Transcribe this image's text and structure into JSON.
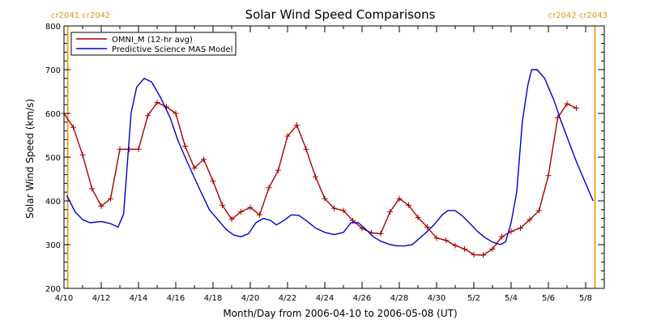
{
  "chart_data": {
    "type": "line",
    "title": "Solar Wind Speed Comparisons",
    "xlabel": "Month/Day from 2006-04-10 to 2006-05-08 (UT)",
    "ylabel": "Solar Wind Speed (km/s)",
    "x_start_date": "2006-04-10",
    "xlim": [
      0,
      29
    ],
    "ylim": [
      200,
      800
    ],
    "x_ticks": [
      {
        "label": "4/10",
        "day": 0
      },
      {
        "label": "4/12",
        "day": 2
      },
      {
        "label": "4/14",
        "day": 4
      },
      {
        "label": "4/16",
        "day": 6
      },
      {
        "label": "4/18",
        "day": 8
      },
      {
        "label": "4/20",
        "day": 10
      },
      {
        "label": "4/22",
        "day": 12
      },
      {
        "label": "4/24",
        "day": 14
      },
      {
        "label": "4/26",
        "day": 16
      },
      {
        "label": "4/28",
        "day": 18
      },
      {
        "label": "4/30",
        "day": 20
      },
      {
        "label": "5/2",
        "day": 22
      },
      {
        "label": "5/4",
        "day": 24
      },
      {
        "label": "5/6",
        "day": 26
      },
      {
        "label": "5/8",
        "day": 28
      }
    ],
    "y_ticks": [
      200,
      300,
      400,
      500,
      600,
      700,
      800
    ],
    "legend_position": "top-left",
    "series": [
      {
        "name": "OMNI_M (12-hr avg)",
        "color": "#aa0000",
        "markers": "plus",
        "points": [
          [
            0.0,
            600
          ],
          [
            0.5,
            568
          ],
          [
            1.0,
            505
          ],
          [
            1.5,
            428
          ],
          [
            2.0,
            388
          ],
          [
            2.5,
            405
          ],
          [
            3.0,
            518
          ],
          [
            3.5,
            518
          ],
          [
            4.0,
            518
          ],
          [
            4.5,
            595
          ],
          [
            5.0,
            625
          ],
          [
            5.5,
            615
          ],
          [
            6.0,
            600
          ],
          [
            6.5,
            525
          ],
          [
            7.0,
            475
          ],
          [
            7.5,
            495
          ],
          [
            8.0,
            445
          ],
          [
            8.5,
            390
          ],
          [
            9.0,
            358
          ],
          [
            9.5,
            375
          ],
          [
            10.0,
            385
          ],
          [
            10.5,
            368
          ],
          [
            11.0,
            430
          ],
          [
            11.5,
            470
          ],
          [
            12.0,
            548
          ],
          [
            12.5,
            573
          ],
          [
            13.0,
            518
          ],
          [
            13.5,
            455
          ],
          [
            14.0,
            405
          ],
          [
            14.5,
            383
          ],
          [
            15.0,
            378
          ],
          [
            15.5,
            355
          ],
          [
            16.0,
            337
          ],
          [
            16.5,
            327
          ],
          [
            17.0,
            325
          ],
          [
            17.5,
            375
          ],
          [
            18.0,
            405
          ],
          [
            18.5,
            390
          ],
          [
            19.0,
            362
          ],
          [
            19.5,
            340
          ],
          [
            20.0,
            315
          ],
          [
            20.5,
            310
          ],
          [
            21.0,
            298
          ],
          [
            21.5,
            290
          ],
          [
            22.0,
            277
          ],
          [
            22.5,
            276
          ],
          [
            23.0,
            290
          ],
          [
            23.5,
            318
          ],
          [
            24.0,
            330
          ],
          [
            24.5,
            338
          ],
          [
            25.0,
            357
          ],
          [
            25.5,
            378
          ],
          [
            26.0,
            458
          ],
          [
            26.5,
            590
          ],
          [
            27.0,
            622
          ],
          [
            27.5,
            612
          ]
        ]
      },
      {
        "name": "Predictive Science MAS Model",
        "color": "#0000cc",
        "markers": "none",
        "points": [
          [
            0.15,
            412
          ],
          [
            0.6,
            375
          ],
          [
            1.0,
            357
          ],
          [
            1.4,
            350
          ],
          [
            2.0,
            353
          ],
          [
            2.5,
            348
          ],
          [
            2.9,
            340
          ],
          [
            3.2,
            370
          ],
          [
            3.6,
            600
          ],
          [
            3.9,
            660
          ],
          [
            4.3,
            680
          ],
          [
            4.7,
            672
          ],
          [
            5.2,
            635
          ],
          [
            5.7,
            590
          ],
          [
            6.1,
            540
          ],
          [
            6.5,
            500
          ],
          [
            6.9,
            462
          ],
          [
            7.3,
            425
          ],
          [
            7.8,
            380
          ],
          [
            8.3,
            355
          ],
          [
            8.7,
            335
          ],
          [
            9.1,
            322
          ],
          [
            9.5,
            318
          ],
          [
            9.9,
            325
          ],
          [
            10.3,
            350
          ],
          [
            10.7,
            360
          ],
          [
            11.1,
            355
          ],
          [
            11.4,
            345
          ],
          [
            11.8,
            355
          ],
          [
            12.2,
            368
          ],
          [
            12.6,
            367
          ],
          [
            13.0,
            355
          ],
          [
            13.5,
            338
          ],
          [
            14.0,
            328
          ],
          [
            14.5,
            323
          ],
          [
            15.0,
            328
          ],
          [
            15.4,
            350
          ],
          [
            15.8,
            350
          ],
          [
            16.2,
            335
          ],
          [
            16.6,
            318
          ],
          [
            17.0,
            308
          ],
          [
            17.5,
            300
          ],
          [
            17.9,
            297
          ],
          [
            18.3,
            297
          ],
          [
            18.7,
            300
          ],
          [
            19.1,
            315
          ],
          [
            19.5,
            330
          ],
          [
            19.9,
            347
          ],
          [
            20.3,
            368
          ],
          [
            20.6,
            378
          ],
          [
            21.0,
            378
          ],
          [
            21.4,
            365
          ],
          [
            21.8,
            348
          ],
          [
            22.2,
            330
          ],
          [
            22.6,
            316
          ],
          [
            23.0,
            306
          ],
          [
            23.4,
            300
          ],
          [
            23.7,
            306
          ],
          [
            24.0,
            350
          ],
          [
            24.3,
            420
          ],
          [
            24.6,
            580
          ],
          [
            24.9,
            665
          ],
          [
            25.1,
            700
          ],
          [
            25.4,
            700
          ],
          [
            25.8,
            680
          ],
          [
            26.3,
            630
          ],
          [
            26.7,
            580
          ],
          [
            27.1,
            535
          ],
          [
            27.5,
            490
          ],
          [
            27.8,
            460
          ],
          [
            28.1,
            430
          ],
          [
            28.4,
            400
          ]
        ]
      }
    ],
    "annotations": [
      {
        "label": "cr2041 cr2042",
        "day": 0.2,
        "position": "left",
        "color": "#f0a030"
      },
      {
        "label": "cr2042 cr2043",
        "day": 28.5,
        "position": "right",
        "color": "#f0a030"
      }
    ]
  }
}
